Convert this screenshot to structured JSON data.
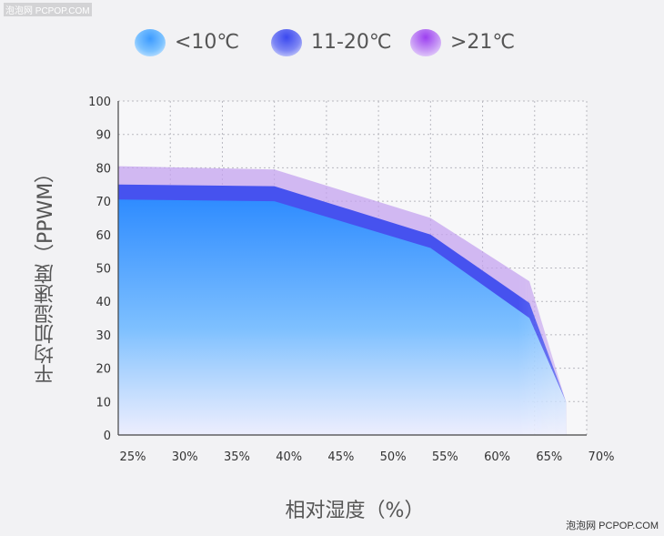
{
  "watermark_top": "泡泡网 PCPOP.COM",
  "watermark_bottom": "泡泡网 PCPOP.COM",
  "legend": [
    {
      "label": "<10℃",
      "color": "#3d9bff"
    },
    {
      "label": "11-20℃",
      "color": "#4b55f0"
    },
    {
      "label": ">21℃",
      "color": "#a65cf0"
    }
  ],
  "chart_data": {
    "type": "area",
    "xlabel": "相对湿度（%）",
    "ylabel": "平均加湿速度（PPWM）",
    "x_ticks": [
      "25%",
      "30%",
      "35%",
      "40%",
      "45%",
      "50%",
      "55%",
      "60%",
      "65%",
      "70%"
    ],
    "y_ticks": [
      "0",
      "10",
      "20",
      "30",
      "40",
      "50",
      "60",
      "70",
      "80",
      "90",
      "100"
    ],
    "xlim": [
      25,
      70
    ],
    "ylim": [
      0,
      100
    ],
    "grid": true,
    "legend_position": "top",
    "series": [
      {
        "name": ">21℃",
        "color": "#c9a9ef",
        "x": [
          25,
          40,
          55,
          64.5,
          68
        ],
        "y": [
          80.5,
          79.5,
          65,
          46,
          10
        ]
      },
      {
        "name": "11-20℃",
        "color": "#4b55f0",
        "x": [
          25,
          40,
          55,
          64.5,
          68
        ],
        "y": [
          75,
          74.5,
          60,
          39.5,
          10
        ]
      },
      {
        "name": "<10℃",
        "color": "#3d9bff",
        "x": [
          25,
          40,
          55,
          64.5,
          68
        ],
        "y": [
          70.5,
          70,
          56,
          35,
          10
        ]
      }
    ]
  }
}
